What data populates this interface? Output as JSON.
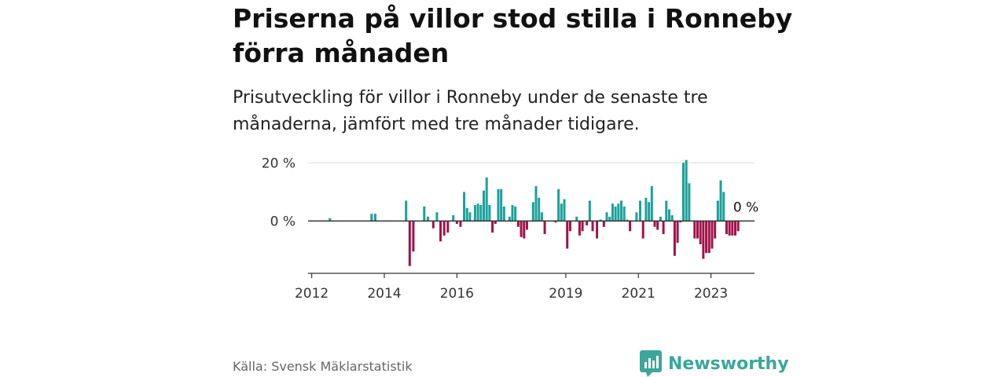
{
  "title": "Priserna på villor stod stilla i Ronneby förra månaden",
  "subtitle": "Prisutveckling för villor i Ronneby under de senaste tre månaderna, jämfört med tre månader tidigare.",
  "source": "Källa: Svensk Mäklarstatistik",
  "brand": "Newsworthy",
  "colors": {
    "positive": "#1ba19a",
    "negative": "#a0134a",
    "grid": "#dddddd",
    "axis": "#333333",
    "brand": "#3aa79a"
  },
  "chart_data": {
    "type": "bar",
    "title": "",
    "xlabel": "",
    "ylabel": "",
    "ylim": [
      -18,
      22
    ],
    "yticks": [
      {
        "value": 0,
        "label": "0 %"
      },
      {
        "value": 20,
        "label": "20 %"
      }
    ],
    "xticks": [
      {
        "value": 2012.0,
        "label": "2012"
      },
      {
        "value": 2014.0,
        "label": "2014"
      },
      {
        "value": 2016.0,
        "label": "2016"
      },
      {
        "value": 2019.0,
        "label": "2019"
      },
      {
        "value": 2021.0,
        "label": "2021"
      },
      {
        "value": 2023.0,
        "label": "2023"
      }
    ],
    "last_value_label": "0 %",
    "series": [
      {
        "points": [
          [
            2012.5,
            1
          ],
          [
            2013.65,
            2.5
          ],
          [
            2013.75,
            2.5
          ],
          [
            2014.6,
            7
          ],
          [
            2014.7,
            -15.5
          ],
          [
            2014.8,
            -10.5
          ],
          [
            2015.1,
            5
          ],
          [
            2015.2,
            1.5
          ],
          [
            2015.35,
            -2.5
          ],
          [
            2015.45,
            3
          ],
          [
            2015.55,
            -7
          ],
          [
            2015.65,
            -5
          ],
          [
            2015.75,
            -4
          ],
          [
            2015.9,
            2
          ],
          [
            2016.0,
            -1
          ],
          [
            2016.1,
            -2
          ],
          [
            2016.2,
            10
          ],
          [
            2016.28,
            4.5
          ],
          [
            2016.36,
            3
          ],
          [
            2016.5,
            5.5
          ],
          [
            2016.58,
            6
          ],
          [
            2016.66,
            5.5
          ],
          [
            2016.74,
            10.5
          ],
          [
            2016.82,
            15
          ],
          [
            2016.9,
            5.5
          ],
          [
            2016.98,
            -4
          ],
          [
            2017.06,
            -1
          ],
          [
            2017.14,
            11
          ],
          [
            2017.22,
            11
          ],
          [
            2017.3,
            5
          ],
          [
            2017.45,
            1.5
          ],
          [
            2017.53,
            5.5
          ],
          [
            2017.61,
            5
          ],
          [
            2017.69,
            -2
          ],
          [
            2017.77,
            -5.5
          ],
          [
            2017.85,
            -6
          ],
          [
            2017.93,
            -3
          ],
          [
            2018.1,
            6.5
          ],
          [
            2018.18,
            12
          ],
          [
            2018.26,
            8
          ],
          [
            2018.34,
            3
          ],
          [
            2018.42,
            -4.5
          ],
          [
            2018.72,
            -0.5
          ],
          [
            2018.8,
            11
          ],
          [
            2018.88,
            6
          ],
          [
            2018.96,
            7.5
          ],
          [
            2019.04,
            -9.5
          ],
          [
            2019.12,
            -3.5
          ],
          [
            2019.3,
            1.5
          ],
          [
            2019.38,
            -5
          ],
          [
            2019.46,
            -3.5
          ],
          [
            2019.58,
            -1.5
          ],
          [
            2019.66,
            7
          ],
          [
            2019.74,
            -3.5
          ],
          [
            2019.86,
            -6
          ],
          [
            2019.96,
            0.5
          ],
          [
            2020.05,
            -2
          ],
          [
            2020.13,
            3
          ],
          [
            2020.21,
            1.5
          ],
          [
            2020.29,
            6
          ],
          [
            2020.37,
            5
          ],
          [
            2020.45,
            6
          ],
          [
            2020.53,
            7
          ],
          [
            2020.61,
            5
          ],
          [
            2020.69,
            0.5
          ],
          [
            2020.77,
            -3.5
          ],
          [
            2020.95,
            3
          ],
          [
            2021.05,
            7
          ],
          [
            2021.13,
            -6
          ],
          [
            2021.21,
            8
          ],
          [
            2021.29,
            6.5
          ],
          [
            2021.37,
            12
          ],
          [
            2021.45,
            -2
          ],
          [
            2021.53,
            -3
          ],
          [
            2021.61,
            1.5
          ],
          [
            2021.69,
            -4.5
          ],
          [
            2021.77,
            7
          ],
          [
            2021.85,
            4
          ],
          [
            2021.93,
            2
          ],
          [
            2022.0,
            -12
          ],
          [
            2022.08,
            -7.5
          ],
          [
            2022.16,
            -0.5
          ],
          [
            2022.24,
            20
          ],
          [
            2022.32,
            21
          ],
          [
            2022.4,
            13
          ],
          [
            2022.55,
            -6
          ],
          [
            2022.63,
            -6
          ],
          [
            2022.71,
            -8
          ],
          [
            2022.79,
            -13
          ],
          [
            2022.87,
            -11
          ],
          [
            2022.95,
            -11
          ],
          [
            2023.03,
            -9.5
          ],
          [
            2023.11,
            -6
          ],
          [
            2023.19,
            7
          ],
          [
            2023.27,
            14
          ],
          [
            2023.35,
            10
          ],
          [
            2023.43,
            -4.5
          ],
          [
            2023.51,
            -5
          ],
          [
            2023.59,
            -5
          ],
          [
            2023.67,
            -5
          ],
          [
            2023.75,
            -3.5
          ],
          [
            2023.83,
            0
          ]
        ]
      }
    ]
  }
}
